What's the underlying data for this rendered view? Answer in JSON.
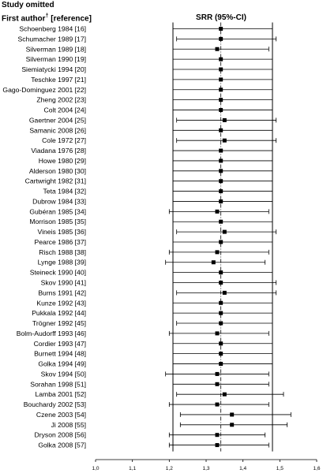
{
  "headings": {
    "study_omitted": "Study omitted",
    "first_author": "First author",
    "first_author_mark": "†",
    "reference": " [reference]",
    "srr": "SRR (95%-CI)"
  },
  "chart_data": {
    "type": "forest",
    "title": "",
    "xlabel": "SRR (95%-CI)",
    "ylabel": "",
    "xlim": [
      1.0,
      1.6
    ],
    "x_ticks": [
      "1,0",
      "1,1",
      "1,2",
      "1,3",
      "1,4",
      "1,5",
      "1,6"
    ],
    "x_tick_values": [
      1.0,
      1.1,
      1.2,
      1.3,
      1.4,
      1.5,
      1.6
    ],
    "grid": false,
    "overall": {
      "point": 1.34,
      "lower": 1.21,
      "upper": 1.48
    },
    "rows": [
      {
        "label": "Schoenberg 1984 [16]",
        "point": 1.34,
        "lower": 1.21,
        "upper": 1.48
      },
      {
        "label": "Schumacher 1989 [17]",
        "point": 1.34,
        "lower": 1.22,
        "upper": 1.49
      },
      {
        "label": "Silverman 1989 [18]",
        "point": 1.33,
        "lower": 1.21,
        "upper": 1.47
      },
      {
        "label": "Silverman 1990 [19]",
        "point": 1.34,
        "lower": 1.21,
        "upper": 1.48
      },
      {
        "label": "Siemiatycki 1994 [20]",
        "point": 1.34,
        "lower": 1.21,
        "upper": 1.48
      },
      {
        "label": "Teschke 1997 [21]",
        "point": 1.34,
        "lower": 1.21,
        "upper": 1.48
      },
      {
        "label": "Gago-Dominguez 2001 [22]",
        "point": 1.34,
        "lower": 1.21,
        "upper": 1.48
      },
      {
        "label": "Zheng 2002 [23]",
        "point": 1.34,
        "lower": 1.21,
        "upper": 1.48
      },
      {
        "label": "Colt 2004 [24]",
        "point": 1.34,
        "lower": 1.21,
        "upper": 1.48
      },
      {
        "label": "Gaertner 2004 [25]",
        "point": 1.35,
        "lower": 1.22,
        "upper": 1.49
      },
      {
        "label": "Samanic 2008 [26]",
        "point": 1.34,
        "lower": 1.21,
        "upper": 1.48
      },
      {
        "label": "Cole 1972 [27]",
        "point": 1.35,
        "lower": 1.22,
        "upper": 1.49
      },
      {
        "label": "Viadana 1976 [28]",
        "point": 1.34,
        "lower": 1.21,
        "upper": 1.48
      },
      {
        "label": "Howe 1980 [29]",
        "point": 1.34,
        "lower": 1.21,
        "upper": 1.48
      },
      {
        "label": "Alderson 1980 [30]",
        "point": 1.34,
        "lower": 1.21,
        "upper": 1.48
      },
      {
        "label": "Cartwright 1982 [31]",
        "point": 1.34,
        "lower": 1.21,
        "upper": 1.48
      },
      {
        "label": "Teta 1984 [32]",
        "point": 1.34,
        "lower": 1.21,
        "upper": 1.48
      },
      {
        "label": "Dubrow 1984 [33]",
        "point": 1.34,
        "lower": 1.21,
        "upper": 1.48
      },
      {
        "label": "Gubéran 1985 [34]",
        "point": 1.33,
        "lower": 1.2,
        "upper": 1.47
      },
      {
        "label": "Morrison 1985 [35]",
        "point": 1.34,
        "lower": 1.21,
        "upper": 1.48
      },
      {
        "label": "Vineis 1985 [36]",
        "point": 1.35,
        "lower": 1.22,
        "upper": 1.49
      },
      {
        "label": "Pearce 1986 [37]",
        "point": 1.34,
        "lower": 1.21,
        "upper": 1.48
      },
      {
        "label": "Risch 1988 [38]",
        "point": 1.33,
        "lower": 1.2,
        "upper": 1.47
      },
      {
        "label": "Lynge 1988 [39]",
        "point": 1.32,
        "lower": 1.19,
        "upper": 1.46
      },
      {
        "label": "Steineck 1990 [40]",
        "point": 1.34,
        "lower": 1.21,
        "upper": 1.48
      },
      {
        "label": "Skov 1990 [41]",
        "point": 1.34,
        "lower": 1.21,
        "upper": 1.49
      },
      {
        "label": "Burns 1991 [42]",
        "point": 1.35,
        "lower": 1.22,
        "upper": 1.49
      },
      {
        "label": "Kunze 1992 [43]",
        "point": 1.34,
        "lower": 1.21,
        "upper": 1.48
      },
      {
        "label": "Pukkala 1992 [44]",
        "point": 1.34,
        "lower": 1.21,
        "upper": 1.48
      },
      {
        "label": "Trögner 1992 [45]",
        "point": 1.34,
        "lower": 1.22,
        "upper": 1.48
      },
      {
        "label": "Bolm-Audorff 1993 [46]",
        "point": 1.33,
        "lower": 1.2,
        "upper": 1.47
      },
      {
        "label": "Cordier 1993 [47]",
        "point": 1.34,
        "lower": 1.21,
        "upper": 1.48
      },
      {
        "label": "Burnett 1994 [48]",
        "point": 1.34,
        "lower": 1.21,
        "upper": 1.48
      },
      {
        "label": "Golka 1994 [49]",
        "point": 1.34,
        "lower": 1.21,
        "upper": 1.48
      },
      {
        "label": "Skov 1994 [50]",
        "point": 1.33,
        "lower": 1.19,
        "upper": 1.47
      },
      {
        "label": "Sorahan 1998 [51]",
        "point": 1.33,
        "lower": 1.21,
        "upper": 1.47
      },
      {
        "label": "Lamba 2001 [52]",
        "point": 1.35,
        "lower": 1.22,
        "upper": 1.51
      },
      {
        "label": "Bouchardy 2002 [53]",
        "point": 1.33,
        "lower": 1.2,
        "upper": 1.47
      },
      {
        "label": "Czene 2003 [54]",
        "point": 1.37,
        "lower": 1.23,
        "upper": 1.53
      },
      {
        "label": "Ji 2008 [55]",
        "point": 1.37,
        "lower": 1.23,
        "upper": 1.52
      },
      {
        "label": "Dryson 2008 [56]",
        "point": 1.33,
        "lower": 1.2,
        "upper": 1.46
      },
      {
        "label": "Golka 2008 [57]",
        "point": 1.33,
        "lower": 1.2,
        "upper": 1.47
      }
    ]
  }
}
